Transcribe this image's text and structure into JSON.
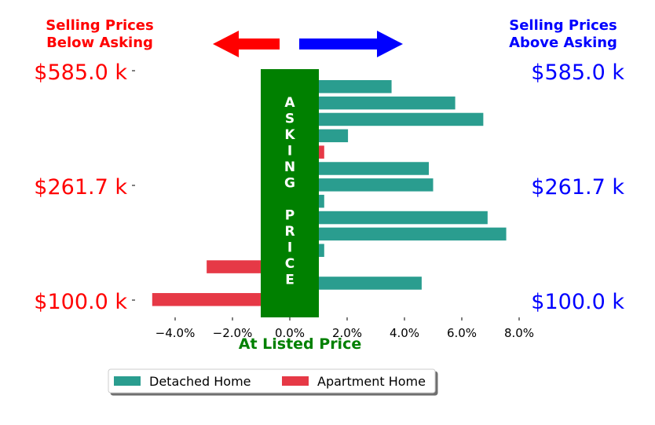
{
  "header": {
    "left_lines": [
      "Selling Prices",
      "Below Asking"
    ],
    "right_lines": [
      "Selling Prices",
      "Above Asking"
    ]
  },
  "colors": {
    "below": "#ff0000",
    "above": "#0000ff",
    "asking": "#008000",
    "detached": "#2a9d8f",
    "apartment": "#e63946"
  },
  "chart_data": {
    "type": "bar",
    "orientation": "horizontal",
    "xlabel": "At Listed Price",
    "xlim": [
      -0.055,
      0.082
    ],
    "x_ticks": [
      -0.04,
      -0.02,
      0.0,
      0.02,
      0.04,
      0.06,
      0.08
    ],
    "x_tick_labels": [
      "−4.0%",
      "−2.0%",
      "0.0%",
      "2.0%",
      "4.0%",
      "6.0%",
      "8.0%"
    ],
    "y_tick_labels": [
      "$585.0 k",
      "$261.7 k",
      "$100.0 k"
    ],
    "asking_price_text": "ASKING PRICE",
    "bars": [
      {
        "value": 0.0355,
        "series": "Detached Home"
      },
      {
        "value": 0.0577,
        "series": "Detached Home"
      },
      {
        "value": 0.0675,
        "series": "Detached Home"
      },
      {
        "value": 0.0203,
        "series": "Detached Home"
      },
      {
        "value": 0.012,
        "series": "Apartment Home"
      },
      {
        "value": 0.0485,
        "series": "Detached Home"
      },
      {
        "value": 0.05,
        "series": "Detached Home"
      },
      {
        "value": 0.012,
        "series": "Detached Home"
      },
      {
        "value": 0.069,
        "series": "Detached Home"
      },
      {
        "value": 0.0755,
        "series": "Detached Home"
      },
      {
        "value": 0.012,
        "series": "Detached Home"
      },
      {
        "value": -0.029,
        "series": "Apartment Home"
      },
      {
        "value": 0.046,
        "series": "Detached Home"
      },
      {
        "value": -0.048,
        "series": "Apartment Home"
      }
    ],
    "legend": {
      "placement": "bottom-center",
      "entries": [
        "Detached Home",
        "Apartment Home"
      ]
    }
  }
}
